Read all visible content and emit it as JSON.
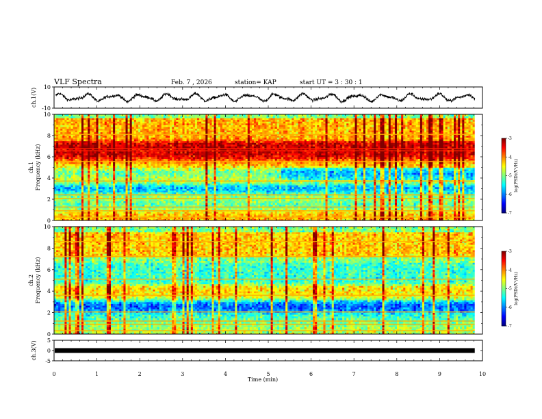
{
  "header": {
    "title": "VLF Spectra",
    "date": "Feb. 7 , 2026",
    "station": "station= KAP",
    "start": "start  UT =   3  : 30 : 1"
  },
  "chart_data": [
    {
      "type": "line",
      "name": "ch1-waveform",
      "ylabel": "ch.1(V)",
      "ylim": [
        -10,
        10
      ],
      "yticks": [
        "10",
        "-10"
      ],
      "series_mean": 0,
      "amplitude_range": [
        -6,
        6
      ]
    },
    {
      "type": "heatmap",
      "name": "ch1-spectrogram",
      "ylabel": "ch.1\nFrequency (kHz)",
      "ylim": [
        0,
        10
      ],
      "yticks": [
        "0",
        "2",
        "4",
        "6",
        "8",
        "10"
      ],
      "bands_kHz": [
        {
          "center": 0.5,
          "level": -4.2
        },
        {
          "center": 1.5,
          "level": -5.3
        },
        {
          "center": 2.2,
          "level": -4.6
        },
        {
          "center": 3.0,
          "level": -6.1
        },
        {
          "center": 3.9,
          "level": -4.3
        },
        {
          "center": 4.5,
          "level": -5.6
        },
        {
          "center": 5.2,
          "level": -4.0
        },
        {
          "center": 6.5,
          "level": -3.3
        },
        {
          "center": 8.5,
          "level": -4.2
        }
      ],
      "colorbar": {
        "label": "log(PSD)(V²/Hz)",
        "range": [
          -7,
          -3
        ],
        "ticks": [
          "-3",
          "-4",
          "-5",
          "-6",
          "-7"
        ]
      }
    },
    {
      "type": "heatmap",
      "name": "ch2-spectrogram",
      "ylabel": "ch.2\nFrequency (kHz)",
      "ylim": [
        0,
        10
      ],
      "yticks": [
        "0",
        "2",
        "4",
        "6",
        "8",
        "10"
      ],
      "bands_kHz": [
        {
          "center": 0.5,
          "level": -4.8
        },
        {
          "center": 1.5,
          "level": -5.2
        },
        {
          "center": 2.6,
          "level": -6.2
        },
        {
          "center": 3.7,
          "level": -4.4
        },
        {
          "center": 5.5,
          "level": -5.3
        },
        {
          "center": 8.3,
          "level": -4.3
        }
      ],
      "colorbar": {
        "label": "log(PSD)(V²/Hz)",
        "range": [
          -7,
          -3
        ],
        "ticks": [
          "-3",
          "-4",
          "-5",
          "-6",
          "-7"
        ]
      }
    },
    {
      "type": "line",
      "name": "ch3-signal",
      "ylabel": "ch.3(V)",
      "ylim": [
        -5,
        5
      ],
      "yticks": [
        "5",
        "0",
        "-5"
      ],
      "level": 0
    }
  ],
  "xaxis": {
    "label": "Time (min)",
    "range": [
      0,
      10
    ],
    "ticks": [
      "0",
      "1",
      "2",
      "3",
      "4",
      "5",
      "6",
      "7",
      "8",
      "9",
      "10"
    ],
    "data_end": 9.82
  }
}
